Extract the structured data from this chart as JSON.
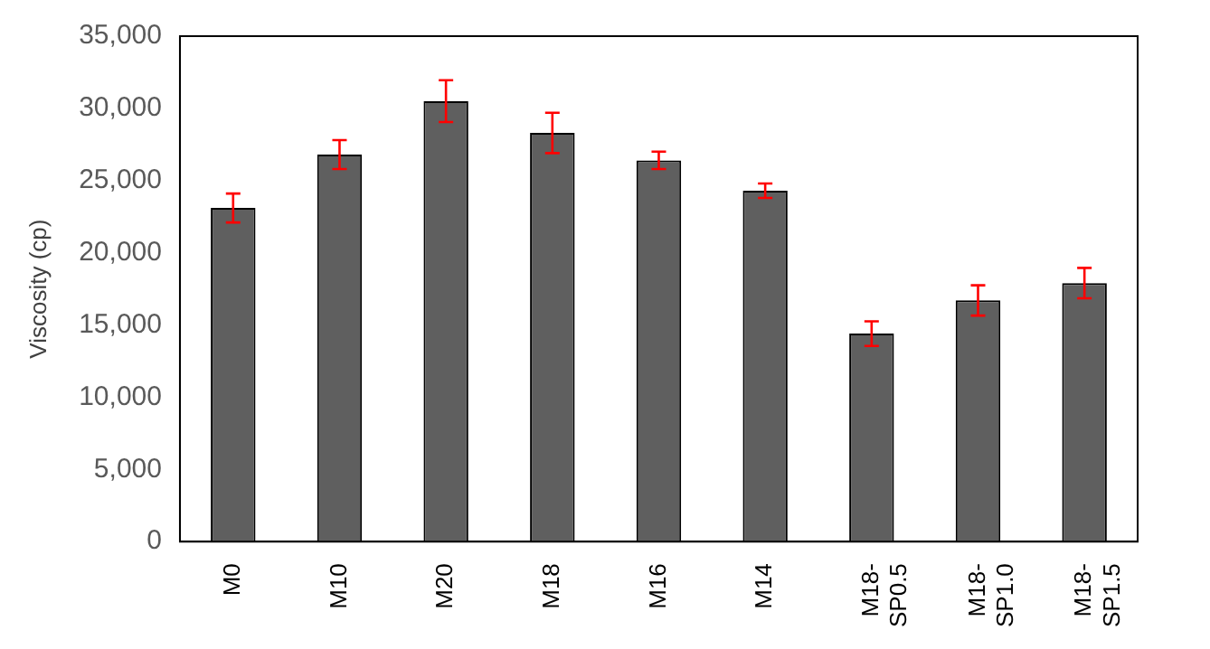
{
  "chart_data": {
    "type": "bar",
    "ylabel": "Viscosity (cp)",
    "categories": [
      "M0",
      "M10",
      "M20",
      "M18",
      "M16",
      "M14",
      "M18-SP0.5",
      "M18-SP1.0",
      "M18-SP1.5"
    ],
    "values": [
      23100,
      26800,
      30500,
      28300,
      26400,
      24300,
      14400,
      16700,
      17900
    ],
    "errors": [
      1000,
      1000,
      1450,
      1400,
      600,
      500,
      850,
      1050,
      1050
    ],
    "color": "#5f5f5f",
    "ylim": [
      0,
      35000
    ],
    "yticks": [
      0,
      {
        "value": 5000,
        "label": "5,000"
      },
      {
        "value": 10000,
        "label": "10,000"
      },
      {
        "value": 15000,
        "label": "15,000"
      },
      {
        "value": 20000,
        "label": "20,000"
      },
      {
        "value": 25000,
        "label": "25,000"
      },
      {
        "value": 30000,
        "label": "30,000"
      },
      {
        "value": 35000,
        "label": "35,000"
      }
    ],
    "grid": false,
    "legend": false
  }
}
